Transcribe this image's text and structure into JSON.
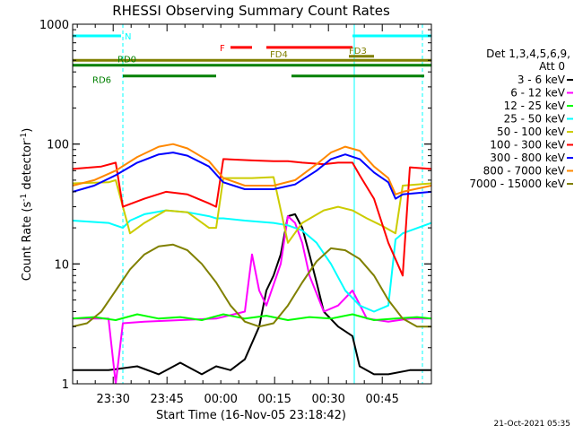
{
  "chart_data": {
    "type": "line",
    "title": "RHESSI Observing Summary Count Rates",
    "xlabel": "Start Time (16-Nov-05 23:18:42)",
    "ylabel": "Count Rate (s⁻¹ detector⁻¹)",
    "ylabel_parts": {
      "main": "Count Rate (s",
      "sup1": "-1",
      "mid": " detector",
      "sup2": "-1",
      "end": ")"
    },
    "yscale": "log",
    "ylim": [
      1,
      1000
    ],
    "xlim_minutes": [
      0,
      100
    ],
    "x_tick_labels": [
      {
        "label": "23:30",
        "min": 11.3
      },
      {
        "label": "23:45",
        "min": 26.3
      },
      {
        "label": "00:00",
        "min": 41.3
      },
      {
        "label": "00:15",
        "min": 56.3
      },
      {
        "label": "00:30",
        "min": 71.3
      },
      {
        "label": "00:45",
        "min": 86.3
      }
    ],
    "y_tick_labels": [
      {
        "label": "1",
        "value": 1
      },
      {
        "label": "10",
        "value": 10
      },
      {
        "label": "100",
        "value": 100
      },
      {
        "label": "1000",
        "value": 1000
      }
    ],
    "legend": {
      "header": "Det 1,3,4,5,6,9,",
      "subheader": "Att 0",
      "position": "right"
    },
    "series": [
      {
        "name": "3 - 6 keV",
        "color": "#000000",
        "points": [
          [
            0,
            1.3
          ],
          [
            10,
            1.3
          ],
          [
            18,
            1.4
          ],
          [
            24,
            1.2
          ],
          [
            30,
            1.5
          ],
          [
            36,
            1.2
          ],
          [
            40,
            1.4
          ],
          [
            44,
            1.3
          ],
          [
            48,
            1.6
          ],
          [
            52,
            3.0
          ],
          [
            54,
            6.0
          ],
          [
            56,
            8.0
          ],
          [
            58,
            12
          ],
          [
            60,
            25
          ],
          [
            62,
            26
          ],
          [
            64,
            20
          ],
          [
            66,
            12
          ],
          [
            68,
            7
          ],
          [
            70,
            4
          ],
          [
            74,
            3
          ],
          [
            78,
            2.5
          ],
          [
            80,
            1.4
          ],
          [
            84,
            1.2
          ],
          [
            88,
            1.2
          ],
          [
            94,
            1.3
          ],
          [
            100,
            1.3
          ]
        ]
      },
      {
        "name": "6 - 12 keV",
        "color": "#ff00ff",
        "points": [
          [
            0,
            3.5
          ],
          [
            10,
            3.5
          ],
          [
            12,
            1.0
          ],
          [
            14,
            3.2
          ],
          [
            20,
            3.3
          ],
          [
            30,
            3.4
          ],
          [
            40,
            3.5
          ],
          [
            48,
            4.0
          ],
          [
            50,
            12
          ],
          [
            52,
            6
          ],
          [
            54,
            4.5
          ],
          [
            58,
            10
          ],
          [
            60,
            25
          ],
          [
            62,
            22
          ],
          [
            64,
            15
          ],
          [
            66,
            8
          ],
          [
            70,
            4
          ],
          [
            74,
            4.5
          ],
          [
            78,
            6
          ],
          [
            82,
            3.5
          ],
          [
            88,
            3.3
          ],
          [
            94,
            3.5
          ],
          [
            100,
            3.5
          ]
        ]
      },
      {
        "name": "12 - 25 keV",
        "color": "#00ff00",
        "points": [
          [
            0,
            3.5
          ],
          [
            6,
            3.6
          ],
          [
            12,
            3.4
          ],
          [
            18,
            3.8
          ],
          [
            24,
            3.5
          ],
          [
            30,
            3.6
          ],
          [
            36,
            3.4
          ],
          [
            42,
            3.8
          ],
          [
            48,
            3.5
          ],
          [
            54,
            3.7
          ],
          [
            60,
            3.4
          ],
          [
            66,
            3.6
          ],
          [
            72,
            3.5
          ],
          [
            78,
            3.8
          ],
          [
            84,
            3.4
          ],
          [
            90,
            3.5
          ],
          [
            96,
            3.6
          ],
          [
            100,
            3.5
          ]
        ]
      },
      {
        "name": "25 - 50 keV",
        "color": "#00ffff",
        "points": [
          [
            0,
            23
          ],
          [
            10,
            22
          ],
          [
            14,
            20
          ],
          [
            16,
            23
          ],
          [
            20,
            26
          ],
          [
            26,
            28
          ],
          [
            32,
            27
          ],
          [
            38,
            25
          ],
          [
            40,
            24
          ],
          [
            42,
            24
          ],
          [
            48,
            23
          ],
          [
            56,
            22
          ],
          [
            60,
            21
          ],
          [
            64,
            19
          ],
          [
            68,
            15
          ],
          [
            72,
            10
          ],
          [
            76,
            6
          ],
          [
            80,
            4.5
          ],
          [
            84,
            4
          ],
          [
            88,
            4.5
          ],
          [
            90,
            16
          ],
          [
            92,
            18
          ],
          [
            100,
            22
          ]
        ]
      },
      {
        "name": "50 - 100 keV",
        "color": "#cccc00",
        "points": [
          [
            0,
            47
          ],
          [
            10,
            48
          ],
          [
            12,
            50
          ],
          [
            16,
            18
          ],
          [
            20,
            22
          ],
          [
            26,
            28
          ],
          [
            32,
            27
          ],
          [
            38,
            20
          ],
          [
            40,
            20
          ],
          [
            42,
            52
          ],
          [
            50,
            52
          ],
          [
            56,
            53
          ],
          [
            60,
            15
          ],
          [
            64,
            22
          ],
          [
            70,
            28
          ],
          [
            74,
            30
          ],
          [
            78,
            28
          ],
          [
            82,
            24
          ],
          [
            86,
            21
          ],
          [
            90,
            18
          ],
          [
            92,
            45
          ],
          [
            100,
            47
          ]
        ]
      },
      {
        "name": "100 - 300 keV",
        "color": "#ff0000",
        "points": [
          [
            0,
            62
          ],
          [
            8,
            65
          ],
          [
            12,
            70
          ],
          [
            14,
            30
          ],
          [
            20,
            35
          ],
          [
            26,
            40
          ],
          [
            32,
            38
          ],
          [
            38,
            32
          ],
          [
            40,
            30
          ],
          [
            42,
            75
          ],
          [
            50,
            73
          ],
          [
            56,
            72
          ],
          [
            60,
            72
          ],
          [
            64,
            70
          ],
          [
            70,
            68
          ],
          [
            74,
            70
          ],
          [
            78,
            70
          ],
          [
            80,
            55
          ],
          [
            84,
            35
          ],
          [
            88,
            15
          ],
          [
            92,
            8
          ],
          [
            94,
            64
          ],
          [
            100,
            62
          ]
        ]
      },
      {
        "name": "300 - 800 keV",
        "color": "#0000ff",
        "points": [
          [
            0,
            40
          ],
          [
            6,
            45
          ],
          [
            12,
            55
          ],
          [
            18,
            70
          ],
          [
            24,
            82
          ],
          [
            28,
            85
          ],
          [
            32,
            80
          ],
          [
            38,
            65
          ],
          [
            42,
            48
          ],
          [
            48,
            42
          ],
          [
            56,
            42
          ],
          [
            62,
            46
          ],
          [
            68,
            60
          ],
          [
            72,
            75
          ],
          [
            76,
            82
          ],
          [
            80,
            75
          ],
          [
            84,
            58
          ],
          [
            88,
            48
          ],
          [
            90,
            35
          ],
          [
            92,
            38
          ],
          [
            100,
            40
          ]
        ]
      },
      {
        "name": "800 - 7000 keV",
        "color": "#ff8800",
        "points": [
          [
            0,
            45
          ],
          [
            6,
            50
          ],
          [
            12,
            60
          ],
          [
            18,
            78
          ],
          [
            24,
            95
          ],
          [
            28,
            100
          ],
          [
            32,
            92
          ],
          [
            38,
            72
          ],
          [
            42,
            52
          ],
          [
            48,
            45
          ],
          [
            56,
            45
          ],
          [
            62,
            50
          ],
          [
            68,
            68
          ],
          [
            72,
            85
          ],
          [
            76,
            95
          ],
          [
            80,
            88
          ],
          [
            84,
            65
          ],
          [
            88,
            52
          ],
          [
            90,
            38
          ],
          [
            92,
            40
          ],
          [
            100,
            45
          ]
        ]
      },
      {
        "name": "7000 - 15000 keV",
        "color": "#808000",
        "points": [
          [
            0,
            3.0
          ],
          [
            4,
            3.2
          ],
          [
            8,
            4.0
          ],
          [
            12,
            6.0
          ],
          [
            16,
            9.0
          ],
          [
            20,
            12
          ],
          [
            24,
            14
          ],
          [
            28,
            14.5
          ],
          [
            32,
            13
          ],
          [
            36,
            10
          ],
          [
            40,
            7
          ],
          [
            44,
            4.5
          ],
          [
            48,
            3.3
          ],
          [
            52,
            3.0
          ],
          [
            56,
            3.2
          ],
          [
            60,
            4.5
          ],
          [
            64,
            7.0
          ],
          [
            68,
            10.5
          ],
          [
            72,
            13.5
          ],
          [
            76,
            13
          ],
          [
            80,
            11
          ],
          [
            84,
            8
          ],
          [
            88,
            5
          ],
          [
            92,
            3.5
          ],
          [
            96,
            3.0
          ],
          [
            100,
            3.0
          ]
        ]
      }
    ],
    "flags": [
      {
        "label": "N",
        "color": "#00ffff",
        "segments": [
          [
            0,
            13.5
          ],
          [
            78,
            100
          ]
        ],
        "level": 800
      },
      {
        "label": "F",
        "color": "#ff0000",
        "segments": [
          [
            44,
            50
          ],
          [
            54,
            78
          ]
        ],
        "level": 640
      },
      {
        "label": "FD3",
        "color": "#808000",
        "segments": [
          [
            77,
            84
          ]
        ],
        "level": 540
      },
      {
        "label": "FD4",
        "color": "#808000",
        "segments": [
          [
            0,
            100
          ]
        ],
        "level": 500
      },
      {
        "label": "RD0",
        "color": "#008000",
        "segments": [
          [
            0,
            100
          ]
        ],
        "level": 455
      },
      {
        "label": "RD6",
        "color": "#008000",
        "segments": [
          [
            14,
            40
          ],
          [
            61,
            98
          ]
        ],
        "level": 370
      }
    ],
    "vertical_markers": [
      {
        "min": 0,
        "color": "#00ffff",
        "style": "solid"
      },
      {
        "min": 14,
        "color": "#00ffff",
        "style": "dashed"
      },
      {
        "min": 78.5,
        "color": "#00ffff",
        "style": "solid"
      },
      {
        "min": 97.5,
        "color": "#00ffff",
        "style": "dashed"
      }
    ]
  },
  "footer": {
    "timestamp": "21-Oct-2021 05:35"
  }
}
